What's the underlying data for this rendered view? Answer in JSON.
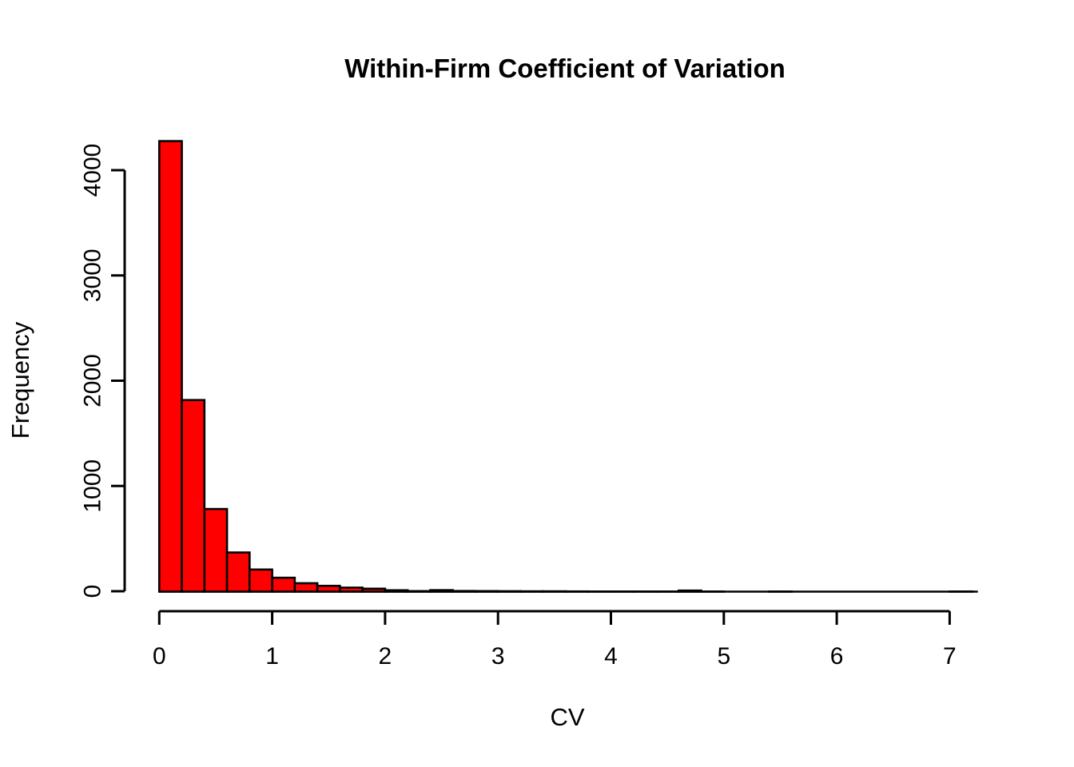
{
  "chart_data": {
    "type": "bar",
    "subtype": "histogram",
    "title": "Within-Firm Coefficient of Variation",
    "xlabel": "CV",
    "ylabel": "Frequency",
    "bar_fill_color": "#FF0000",
    "bar_border_color": "#000000",
    "background_color": "#FFFFFF",
    "grid": false,
    "legend": false,
    "bin_width": 0.2,
    "bin_starts": [
      0.0,
      0.2,
      0.4,
      0.6,
      0.8,
      1.0,
      1.2,
      1.4,
      1.6,
      1.8,
      2.0,
      2.2,
      2.4,
      2.6,
      2.8,
      3.0,
      3.2,
      3.4,
      3.6,
      3.8,
      4.0,
      4.2,
      4.4,
      4.6,
      4.8,
      5.0,
      5.2,
      5.4,
      5.6,
      5.8,
      6.0,
      6.2,
      6.4,
      6.6,
      6.8,
      7.0
    ],
    "counts": [
      4280,
      1820,
      785,
      372,
      210,
      132,
      80,
      55,
      38,
      28,
      13,
      5,
      14,
      6,
      5,
      4,
      3,
      3,
      2,
      1,
      1,
      1,
      1,
      10,
      1,
      0,
      0,
      1,
      0,
      0,
      0,
      0,
      0,
      0,
      0,
      1
    ],
    "x_ticks": [
      0,
      1,
      2,
      3,
      4,
      5,
      6,
      7
    ],
    "y_ticks": [
      0,
      1000,
      2000,
      3000,
      4000
    ],
    "xlim": [
      0,
      7.2
    ],
    "ylim": [
      0,
      4280
    ]
  }
}
